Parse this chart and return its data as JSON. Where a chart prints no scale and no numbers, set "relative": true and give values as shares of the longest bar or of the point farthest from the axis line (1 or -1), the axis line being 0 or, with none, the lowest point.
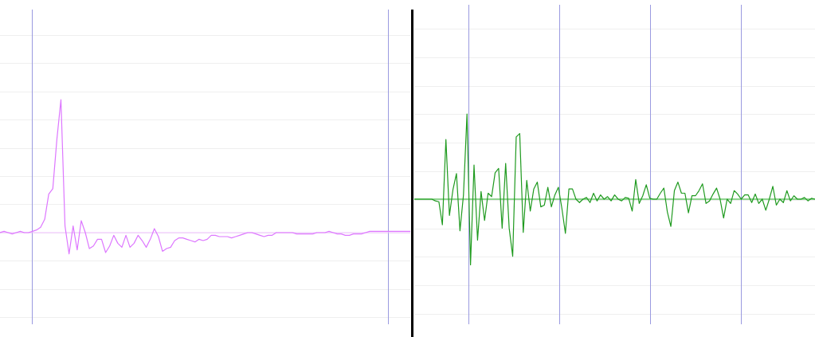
{
  "chart_data": [
    {
      "type": "line",
      "relative": true,
      "grid": true,
      "categories": [
        null,
        null,
        null,
        null,
        null,
        null,
        null,
        null,
        null,
        null,
        null,
        null,
        null,
        null,
        null,
        null,
        null,
        null,
        null,
        null,
        null,
        null,
        null,
        null,
        null,
        null,
        null,
        null,
        null,
        null,
        null,
        null,
        null,
        null,
        null,
        null,
        null,
        null,
        null,
        null,
        null,
        null,
        null,
        null,
        null,
        null,
        null,
        null,
        null,
        null,
        null,
        null,
        null,
        null,
        null,
        null,
        null,
        null,
        null,
        null,
        null,
        null,
        null,
        null,
        null,
        null,
        null,
        null,
        null,
        null,
        null,
        null,
        null,
        null,
        null,
        null,
        null,
        null,
        null,
        null,
        null,
        null,
        null,
        null,
        null,
        null,
        null,
        null,
        null,
        null,
        null,
        null,
        null,
        null,
        null,
        null,
        null,
        null,
        null,
        null,
        null,
        null
      ],
      "series": [
        {
          "color": "#dd77ff",
          "values": [
            0,
            0.01,
            0,
            -0.01,
            0,
            0.01,
            0,
            0,
            0.01,
            0.02,
            0.04,
            0.1,
            0.29,
            0.33,
            0.7,
            1,
            0.05,
            -0.16,
            0.05,
            -0.13,
            0.09,
            0,
            -0.12,
            -0.1,
            -0.05,
            -0.05,
            -0.15,
            -0.1,
            -0.02,
            -0.08,
            -0.11,
            -0.02,
            -0.11,
            -0.08,
            -0.02,
            -0.06,
            -0.11,
            -0.05,
            0.03,
            -0.03,
            -0.14,
            -0.12,
            -0.11,
            -0.06,
            -0.04,
            -0.04,
            -0.05,
            -0.06,
            -0.07,
            -0.05,
            -0.06,
            -0.05,
            -0.02,
            -0.02,
            -0.03,
            -0.03,
            -0.03,
            -0.04,
            -0.03,
            -0.02,
            -0.01,
            0,
            0,
            -0.01,
            -0.02,
            -0.03,
            -0.02,
            -0.02,
            0,
            0,
            0,
            0,
            0,
            -0.01,
            -0.01,
            -0.01,
            -0.01,
            -0.01,
            0,
            0,
            0,
            0.01,
            0,
            -0.01,
            -0.01,
            -0.02,
            -0.02,
            -0.01,
            -0.01,
            -0.01,
            0,
            0.01,
            0.01,
            0.01,
            0.01,
            0.01,
            0.01,
            0.01,
            0.01,
            0.01,
            0.01,
            0.01
          ]
        }
      ],
      "ref_lines": [
        {
          "axis": "y",
          "value": 0,
          "color": "#f2c2ff"
        }
      ]
    },
    {
      "type": "line",
      "relative": true,
      "grid": true,
      "categories": [
        null,
        null,
        null,
        null,
        null,
        null,
        null,
        null,
        null,
        null,
        null,
        null,
        null,
        null,
        null,
        null,
        null,
        null,
        null,
        null,
        null,
        null,
        null,
        null,
        null,
        null,
        null,
        null,
        null,
        null,
        null,
        null,
        null,
        null,
        null,
        null,
        null,
        null,
        null,
        null,
        null,
        null,
        null,
        null,
        null,
        null,
        null,
        null,
        null,
        null,
        null,
        null,
        null,
        null,
        null,
        null,
        null,
        null,
        null,
        null,
        null,
        null,
        null,
        null,
        null,
        null,
        null,
        null,
        null,
        null,
        null,
        null,
        null,
        null,
        null,
        null,
        null,
        null,
        null,
        null,
        null,
        null,
        null,
        null,
        null,
        null,
        null,
        null,
        null,
        null,
        null,
        null,
        null,
        null,
        null,
        null,
        null,
        null,
        null,
        null,
        null,
        null,
        null,
        null,
        null,
        null,
        null,
        null,
        null,
        null,
        null,
        null,
        null,
        null,
        null
      ],
      "series": [
        {
          "color": "#1f9a1f",
          "values": [
            0,
            0,
            0,
            0,
            0,
            0,
            -0.02,
            -0.03,
            -0.3,
            0.7,
            -0.19,
            0.11,
            0.3,
            -0.37,
            0.05,
            1,
            -0.77,
            0.4,
            -0.48,
            0.09,
            -0.25,
            0.07,
            0.03,
            0.31,
            0.36,
            -0.34,
            0.42,
            -0.34,
            -0.67,
            0.73,
            0.77,
            -0.39,
            0.22,
            -0.14,
            0.12,
            0.2,
            -0.09,
            -0.07,
            0.14,
            -0.09,
            0.05,
            0.14,
            -0.11,
            -0.4,
            0.12,
            0.12,
            0,
            -0.04,
            0,
            0.02,
            -0.04,
            0.07,
            -0.02,
            0.05,
            0,
            0.03,
            -0.02,
            0.05,
            0,
            -0.02,
            0.02,
            0.01,
            -0.14,
            0.23,
            -0.05,
            0.04,
            0.17,
            0.01,
            0,
            0,
            0.07,
            0.13,
            -0.15,
            -0.32,
            0.1,
            0.2,
            0.07,
            0.07,
            -0.16,
            0.04,
            0.04,
            0.1,
            0.18,
            -0.05,
            -0.02,
            0.06,
            0.13,
            0,
            -0.22,
            0,
            -0.05,
            0.1,
            0.06,
            0,
            0.05,
            0.05,
            -0.04,
            0.06,
            -0.05,
            0,
            -0.13,
            0,
            0.15,
            -0.07,
            0,
            -0.04,
            0.1,
            -0.02,
            0.04,
            0,
            0,
            0.02,
            -0.02,
            0.01,
            0
          ]
        }
      ],
      "ref_lines": [
        {
          "axis": "y",
          "value": 0,
          "color": "#22aa22"
        }
      ]
    }
  ]
}
